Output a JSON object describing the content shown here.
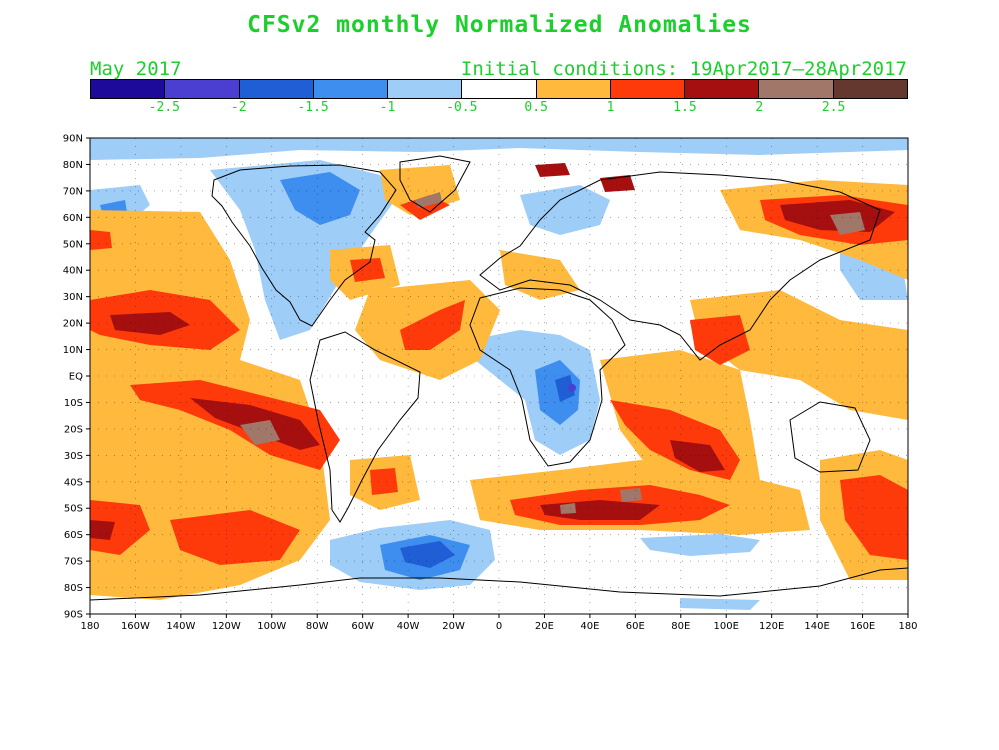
{
  "title": "CFSv2 monthly Normalized Anomalies",
  "forecast_month": "May 2017",
  "initial_conditions": "Initial conditions: 19Apr2017–28Apr2017",
  "colorbar": {
    "colors": [
      "#1e0a9a",
      "#4a3fd0",
      "#1f5ed4",
      "#3e8ef0",
      "#9ecdf7",
      "#ffffff",
      "#ffb93c",
      "#ff3a0a",
      "#a50f0f",
      "#a07768",
      "#64382f"
    ],
    "labels": [
      "-2.5",
      "-2",
      "-1.5",
      "-1",
      "-0.5",
      "0.5",
      "1",
      "1.5",
      "2",
      "2.5"
    ]
  },
  "map": {
    "lat_labels": [
      "90N",
      "80N",
      "70N",
      "60N",
      "50N",
      "40N",
      "30N",
      "20N",
      "10N",
      "EQ",
      "10S",
      "20S",
      "30S",
      "40S",
      "50S",
      "60S",
      "70S",
      "80S",
      "90S"
    ],
    "lon_labels": [
      "180",
      "160W",
      "140W",
      "120W",
      "100W",
      "80W",
      "60W",
      "40W",
      "20W",
      "0",
      "20E",
      "40E",
      "60E",
      "80E",
      "100E",
      "120E",
      "140E",
      "160E",
      "180"
    ]
  }
}
